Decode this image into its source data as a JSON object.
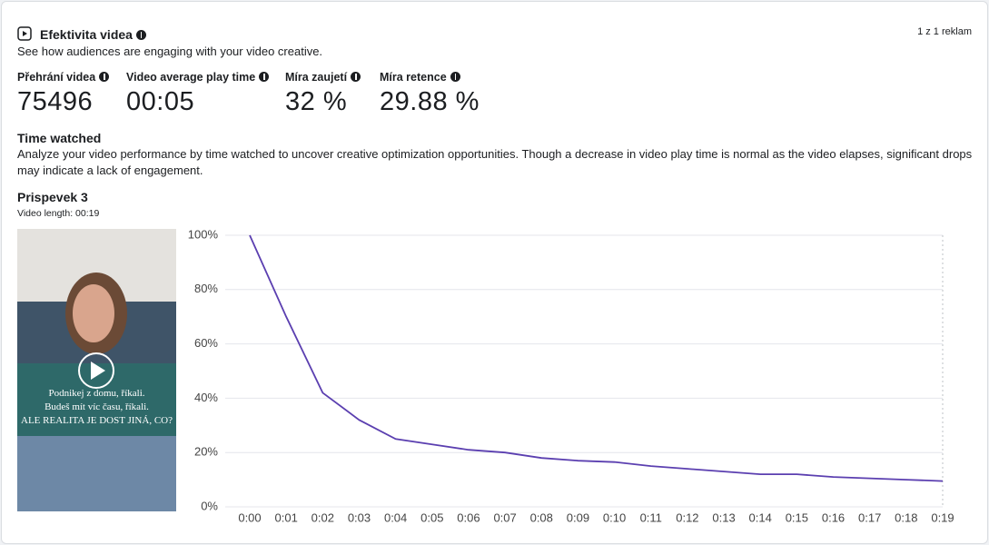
{
  "header": {
    "title": "Efektivita videa",
    "subtitle": "See how audiences are engaging with your video creative.",
    "pager": "1 z 1 reklam"
  },
  "metrics": [
    {
      "label": "Přehrání videa",
      "value": 75496
    },
    {
      "label": "Video average play time",
      "value": "00:05"
    },
    {
      "label": "Míra zaujetí",
      "value": "32 %"
    },
    {
      "label": "Míra retence",
      "value": "29.88 %"
    }
  ],
  "section": {
    "title": "Time watched",
    "description": "Analyze your video performance by time watched to uncover creative optimization opportunities. Though a decrease in video play time is normal as the video elapses, significant drops may indicate a lack of engagement."
  },
  "video": {
    "title": "Prispevek 3",
    "length": "Video length: 00:19",
    "caption": [
      "Podnikej z domu, říkali.",
      "Budeš mít víc času, říkali.",
      "ALE REALITA JE DOST JINÁ, CO?"
    ]
  },
  "chart_data": {
    "type": "line",
    "categories": [
      "0:00",
      "0:01",
      "0:02",
      "0:03",
      "0:04",
      "0:05",
      "0:06",
      "0:07",
      "0:08",
      "0:09",
      "0:10",
      "0:11",
      "0:12",
      "0:13",
      "0:14",
      "0:15",
      "0:16",
      "0:17",
      "0:18",
      "0:19"
    ],
    "values": [
      100,
      70,
      42,
      32,
      25,
      23,
      21,
      20,
      18,
      17,
      16.5,
      15,
      14,
      13,
      12,
      12,
      11,
      10.5,
      10,
      9.5
    ],
    "color": "#5b3fb0",
    "ylim": [
      0,
      100
    ],
    "yticks": [
      {
        "value": 0,
        "label": "0%"
      },
      {
        "value": 20,
        "label": "20%"
      },
      {
        "value": 40,
        "label": "40%"
      },
      {
        "value": 60,
        "label": "60%"
      },
      {
        "value": 80,
        "label": "80%"
      },
      {
        "value": 100,
        "label": "100%"
      }
    ],
    "grid": true
  }
}
